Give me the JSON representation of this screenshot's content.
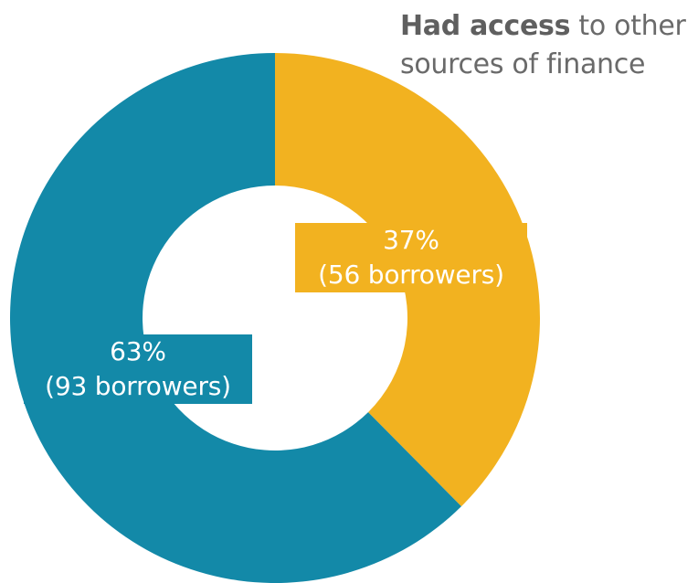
{
  "legend_note": {
    "strong": "Had access",
    "rest": "to other sources of finance"
  },
  "colors": {
    "had_access": "#f2b220",
    "no_access": "#1389a8"
  },
  "chart_data": {
    "type": "pie",
    "variant": "donut",
    "title": "",
    "slices": [
      {
        "key": "had_access",
        "percent_label": "37%",
        "count_label": "(56 borrowers)",
        "value": 56,
        "color": "#f2b220"
      },
      {
        "key": "no_access",
        "percent_label": "63%",
        "count_label": "(93 borrowers)",
        "value": 93,
        "color": "#1389a8"
      }
    ]
  }
}
